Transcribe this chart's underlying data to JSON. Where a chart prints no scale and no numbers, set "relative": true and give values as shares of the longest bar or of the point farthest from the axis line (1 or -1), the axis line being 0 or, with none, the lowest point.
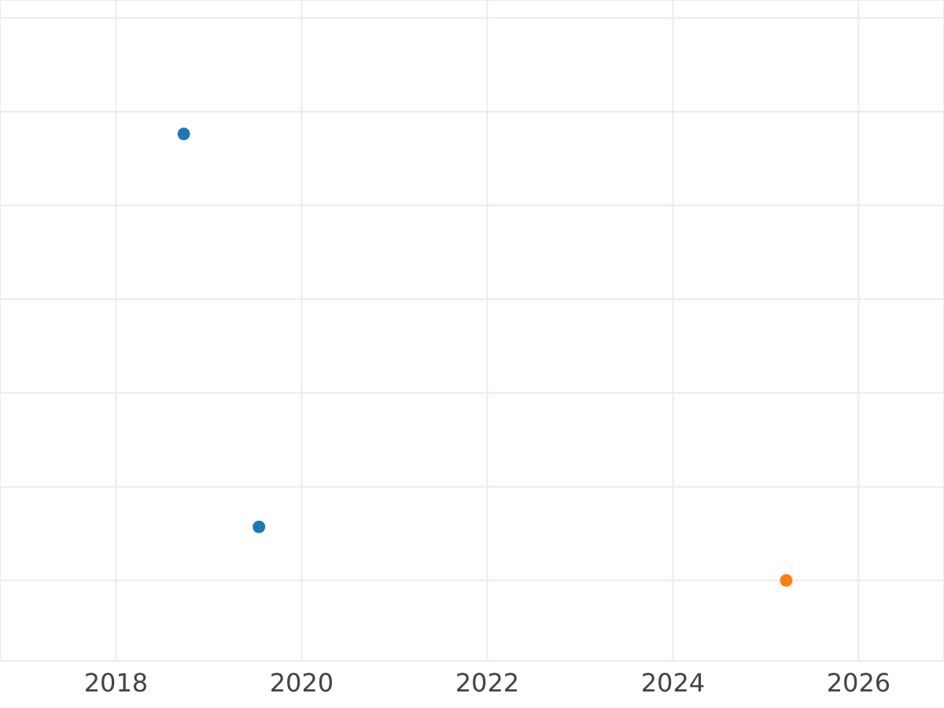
{
  "chart_data": {
    "type": "scatter",
    "relative": true,
    "xlim": [
      2016.75,
      2026.92
    ],
    "xticks": [
      2018,
      2020,
      2022,
      2024,
      2026
    ],
    "grid": true,
    "legend": false,
    "marker": "circle",
    "series": [
      {
        "color": "#1f77b4",
        "x": [
          2018.73,
          2019.54
        ],
        "values": [
          1,
          0.12
        ]
      },
      {
        "color": "#ff7f0e",
        "x": [
          2025.22
        ],
        "values": [
          0
        ]
      }
    ]
  }
}
